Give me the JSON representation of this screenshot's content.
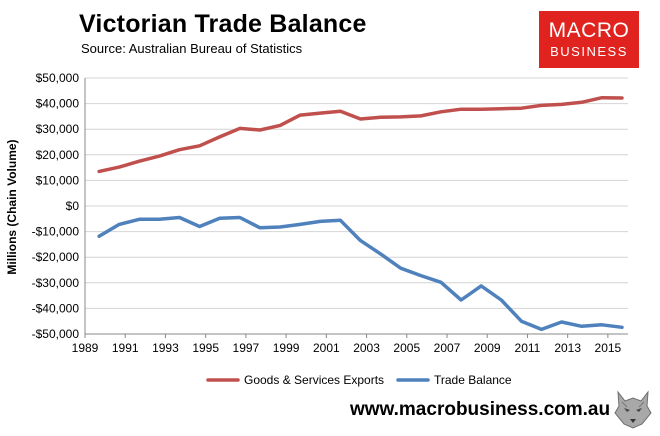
{
  "header": {
    "title": "Victorian Trade Balance",
    "source": "Source:  Australian Bureau of Statistics"
  },
  "brand": {
    "line1": "MACRO",
    "line2": "BUSINESS",
    "color": "#e0231f",
    "logo_icon": "wolf-head-icon"
  },
  "footer": {
    "website": "www.macrobusiness.com.au"
  },
  "chart_data": {
    "type": "line",
    "title": "",
    "xlabel": "",
    "ylabel": "Millions (Chain Volume)",
    "ylim": [
      -50000,
      50000
    ],
    "xlim": [
      1989,
      2016
    ],
    "y_ticks": [
      50000,
      40000,
      30000,
      20000,
      10000,
      0,
      -10000,
      -20000,
      -30000,
      -40000,
      -50000
    ],
    "y_tick_labels": [
      "$50,000",
      "$40,000",
      "$30,000",
      "$20,000",
      "$10,000",
      "$0",
      "-$10,000",
      "-$20,000",
      "-$30,000",
      "-$40,000",
      "-$50,000"
    ],
    "x_ticks": [
      1989,
      1991,
      1993,
      1995,
      1997,
      1999,
      2001,
      2003,
      2005,
      2007,
      2009,
      2011,
      2013,
      2015
    ],
    "x_tick_labels": [
      "1989",
      "1991",
      "1993",
      "1995",
      "1997",
      "1999",
      "2001",
      "2003",
      "2005",
      "2007",
      "2009",
      "2011",
      "2013",
      "2015"
    ],
    "grid": "horizontal",
    "legend_position": "bottom",
    "x": [
      1989.7,
      1990.7,
      1991.7,
      1992.7,
      1993.7,
      1994.7,
      1995.7,
      1996.7,
      1997.7,
      1998.7,
      1999.7,
      2000.7,
      2001.7,
      2002.7,
      2003.7,
      2004.7,
      2005.7,
      2006.7,
      2007.7,
      2008.7,
      2009.7,
      2010.7,
      2011.7,
      2012.7,
      2013.7,
      2014.7,
      2015.7
    ],
    "series": [
      {
        "name": "Goods & Services Exports",
        "color": "#c0504d",
        "values": [
          13500,
          15200,
          17500,
          19500,
          22000,
          23500,
          27000,
          30300,
          29700,
          31500,
          35500,
          36300,
          37000,
          34000,
          34700,
          34800,
          35200,
          36800,
          37800,
          37800,
          38000,
          38200,
          39300,
          39700,
          40500,
          42300,
          42200
        ]
      },
      {
        "name": "Trade Balance",
        "color": "#4f81bd",
        "values": [
          -11800,
          -7200,
          -5200,
          -5200,
          -4500,
          -8000,
          -4800,
          -4500,
          -8500,
          -8200,
          -7200,
          -6000,
          -5600,
          -13500,
          -18700,
          -24300,
          -27200,
          -29800,
          -36700,
          -31200,
          -36700,
          -45000,
          -48200,
          -45300,
          -47000,
          -46400,
          -47400
        ]
      }
    ]
  }
}
